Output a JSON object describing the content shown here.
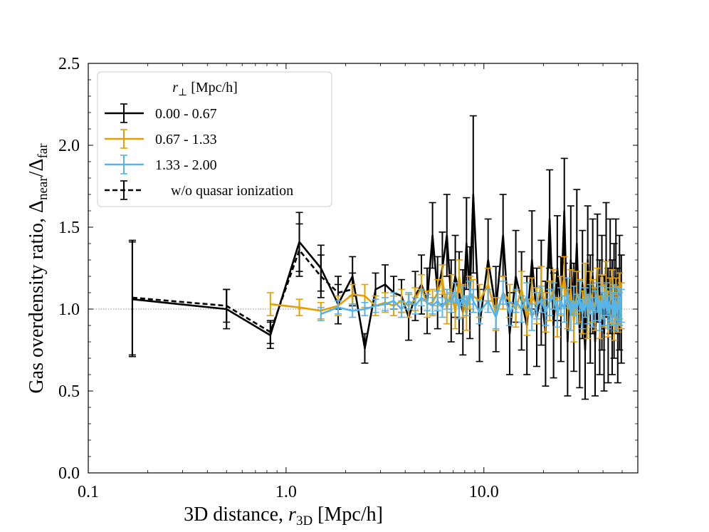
{
  "chart_data": {
    "type": "line",
    "xscale": "log",
    "xlim": [
      0.1,
      60
    ],
    "ylim": [
      0.0,
      2.5
    ],
    "x_tick_labels": [
      "0.1",
      "1.0",
      "10.0"
    ],
    "y_tick_labels": [
      "0.0",
      "0.5",
      "1.0",
      "1.5",
      "2.0",
      "2.5"
    ],
    "reference_line": {
      "y": 1.0,
      "style": "dotted",
      "color": "#888888"
    },
    "xlabel_prefix": "3D distance, ",
    "xlabel_var": "r",
    "xlabel_sub": "3D",
    "xlabel_suffix": " [Mpc/h]",
    "ylabel_prefix": "Gas overdensity ratio, ",
    "ylabel_num": "Δ",
    "ylabel_num_sub": "near",
    "ylabel_slash": "/",
    "ylabel_den": "Δ",
    "ylabel_den_sub": "far",
    "legend": {
      "title_var": "r",
      "title_sub": "⊥",
      "title_suffix": " [Mpc/h]",
      "placement": "upper-left",
      "entries": [
        "0.00 - 0.67",
        "0.67 - 1.33",
        "1.33 - 2.00",
        "w/o quasar ionization"
      ]
    },
    "series": [
      {
        "name": "0.00 - 0.67",
        "color": "#000000",
        "style": "solid",
        "x": [
          0.167,
          0.5,
          0.833,
          1.167,
          1.5,
          1.833,
          2.167,
          2.5,
          2.833,
          3.167,
          3.5,
          3.833,
          4.167,
          4.5,
          4.833,
          5.167,
          5.5,
          5.833,
          6.167,
          6.5,
          6.833,
          7.167,
          7.5,
          7.833,
          8.167,
          8.5,
          8.833,
          9.5,
          10.5,
          11.5,
          12.5,
          13.5,
          14.5,
          15.5,
          16.5,
          17.5,
          18.5,
          19.5,
          20.5,
          21.5,
          22.5,
          23.5,
          24.5,
          25.5,
          26.5,
          27.5,
          28.5,
          29.5,
          30.5,
          31.5,
          32.5,
          33.5,
          34.5,
          35.5,
          36.5,
          37.5,
          38.5,
          39.5,
          40.5,
          41.5,
          42.5,
          43.5,
          44.5,
          45.5,
          46.5,
          47.5,
          48.5,
          49.5
        ],
        "y": [
          1.06,
          1.0,
          0.84,
          1.41,
          1.25,
          1.03,
          1.2,
          0.76,
          1.12,
          1.15,
          1.1,
          1.08,
          0.95,
          1.08,
          1.15,
          1.05,
          1.45,
          1.1,
          1.25,
          1.45,
          1.05,
          1.2,
          1.1,
          0.98,
          1.4,
          1.1,
          1.7,
          0.9,
          1.3,
          1.0,
          1.45,
          0.85,
          1.2,
          1.05,
          0.9,
          1.3,
          0.95,
          1.1,
          0.85,
          1.55,
          0.9,
          1.25,
          1.0,
          1.6,
          0.8,
          1.3,
          0.95,
          1.4,
          0.85,
          1.15,
          0.75,
          1.3,
          1.0,
          1.2,
          0.8,
          1.25,
          0.95,
          1.1,
          0.85,
          1.3,
          0.9,
          1.2,
          0.95,
          1.05,
          1.2,
          0.9,
          1.1,
          1.0
        ],
        "err": [
          0.35,
          0.12,
          0.08,
          0.18,
          0.14,
          0.12,
          0.12,
          0.09,
          0.1,
          0.12,
          0.1,
          0.1,
          0.14,
          0.15,
          0.18,
          0.2,
          0.2,
          0.22,
          0.22,
          0.25,
          0.25,
          0.25,
          0.25,
          0.26,
          0.28,
          0.28,
          0.48,
          0.22,
          0.25,
          0.26,
          0.25,
          0.25,
          0.28,
          0.3,
          0.3,
          0.3,
          0.3,
          0.32,
          0.32,
          0.3,
          0.32,
          0.32,
          0.32,
          0.32,
          0.33,
          0.33,
          0.33,
          0.33,
          0.33,
          0.33,
          0.3,
          0.33,
          0.33,
          0.35,
          0.33,
          0.33,
          0.35,
          0.35,
          0.35,
          0.35,
          0.35,
          0.35,
          0.35,
          0.35,
          0.35,
          0.35,
          0.35,
          0.33
        ]
      },
      {
        "name": "0.67 - 1.33",
        "color": "#E69F00",
        "style": "solid",
        "x": [
          0.833,
          1.167,
          1.5,
          1.833,
          2.167,
          2.5,
          2.833,
          3.167,
          3.5,
          3.833,
          4.167,
          4.5,
          4.833,
          5.167,
          5.5,
          5.833,
          6.167,
          6.5,
          6.833,
          7.167,
          7.5,
          7.833,
          8.167,
          8.5,
          8.833,
          9.5,
          10.5,
          11.5,
          12.5,
          13.5,
          14.5,
          15.5,
          16.5,
          17.5,
          18.5,
          19.5,
          20.5,
          21.5,
          22.5,
          23.5,
          24.5,
          25.5,
          26.5,
          27.5,
          28.5,
          29.5,
          30.5,
          31.5,
          32.5,
          33.5,
          34.5,
          35.5,
          36.5,
          37.5,
          38.5,
          39.5,
          40.5,
          41.5,
          42.5,
          43.5,
          44.5,
          45.5,
          46.5,
          47.5,
          48.5,
          49.5
        ],
        "y": [
          1.03,
          1.01,
          0.99,
          1.02,
          1.09,
          1.08,
          1.02,
          1.04,
          1.02,
          1.05,
          1.02,
          1.06,
          1.13,
          1.03,
          1.04,
          1.1,
          1.18,
          1.0,
          1.12,
          0.98,
          1.2,
          1.05,
          0.97,
          1.1,
          1.08,
          1.05,
          1.15,
          0.97,
          1.1,
          1.05,
          1.0,
          1.12,
          0.95,
          1.08,
          1.02,
          1.15,
          0.98,
          1.05,
          1.12,
          0.95,
          1.08,
          1.2,
          1.0,
          1.12,
          0.92,
          1.1,
          1.05,
          0.98,
          1.15,
          0.95,
          1.1,
          1.05,
          1.0,
          1.12,
          0.95,
          1.08,
          1.02,
          1.15,
          0.97,
          1.05,
          1.1,
          0.95,
          1.05,
          1.0,
          1.08,
          1.02
        ],
        "err": [
          0.07,
          0.05,
          0.05,
          0.06,
          0.06,
          0.07,
          0.06,
          0.06,
          0.06,
          0.07,
          0.07,
          0.07,
          0.08,
          0.08,
          0.08,
          0.08,
          0.09,
          0.09,
          0.09,
          0.1,
          0.1,
          0.1,
          0.1,
          0.1,
          0.1,
          0.1,
          0.1,
          0.1,
          0.1,
          0.1,
          0.11,
          0.11,
          0.11,
          0.11,
          0.11,
          0.11,
          0.12,
          0.12,
          0.12,
          0.12,
          0.12,
          0.12,
          0.12,
          0.12,
          0.12,
          0.13,
          0.13,
          0.13,
          0.13,
          0.13,
          0.13,
          0.13,
          0.13,
          0.13,
          0.13,
          0.13,
          0.13,
          0.14,
          0.14,
          0.14,
          0.14,
          0.14,
          0.14,
          0.14,
          0.14,
          0.14
        ]
      },
      {
        "name": "1.33 - 2.00",
        "color": "#56B4E9",
        "style": "solid",
        "x": [
          1.5,
          1.833,
          2.167,
          2.5,
          2.833,
          3.167,
          3.5,
          3.833,
          4.167,
          4.5,
          4.833,
          5.167,
          5.5,
          5.833,
          6.167,
          6.5,
          6.833,
          7.167,
          7.5,
          7.833,
          8.167,
          8.5,
          8.833,
          9.5,
          10.5,
          11.5,
          12.5,
          13.5,
          14.5,
          15.5,
          16.5,
          17.5,
          18.5,
          19.5,
          20.5,
          21.5,
          22.5,
          23.5,
          24.5,
          25.5,
          26.5,
          27.5,
          28.5,
          29.5,
          30.5,
          31.5,
          32.5,
          33.5,
          34.5,
          35.5,
          36.5,
          37.5,
          38.5,
          39.5,
          40.5,
          41.5,
          42.5,
          43.5,
          44.5,
          45.5,
          46.5,
          47.5,
          48.5,
          49.5
        ],
        "y": [
          0.97,
          1.01,
          0.99,
          1.0,
          1.02,
          1.03,
          1.05,
          1.0,
          1.05,
          1.02,
          1.07,
          1.04,
          1.02,
          1.05,
          1.01,
          1.06,
          1.04,
          1.1,
          1.0,
          1.08,
          1.02,
          1.1,
          1.05,
          0.98,
          1.05,
          0.95,
          1.1,
          0.97,
          1.05,
          1.0,
          1.08,
          0.95,
          1.02,
          1.06,
          0.98,
          1.04,
          1.08,
          0.97,
          1.05,
          1.0,
          1.1,
          0.96,
          1.05,
          1.0,
          1.08,
          0.97,
          1.04,
          1.0,
          1.06,
          0.98,
          1.02,
          1.07,
          0.96,
          1.04,
          1.0,
          1.06,
          0.98,
          1.03,
          1.0,
          1.05,
          0.97,
          1.03,
          1.0,
          1.02
        ],
        "err": [
          0.04,
          0.04,
          0.04,
          0.04,
          0.04,
          0.04,
          0.05,
          0.05,
          0.05,
          0.05,
          0.05,
          0.05,
          0.05,
          0.06,
          0.06,
          0.06,
          0.06,
          0.06,
          0.06,
          0.06,
          0.06,
          0.07,
          0.07,
          0.07,
          0.07,
          0.07,
          0.07,
          0.07,
          0.07,
          0.08,
          0.08,
          0.08,
          0.08,
          0.08,
          0.08,
          0.08,
          0.08,
          0.08,
          0.08,
          0.08,
          0.09,
          0.09,
          0.09,
          0.09,
          0.09,
          0.09,
          0.09,
          0.09,
          0.09,
          0.09,
          0.09,
          0.09,
          0.09,
          0.1,
          0.1,
          0.1,
          0.1,
          0.1,
          0.1,
          0.1,
          0.1,
          0.1,
          0.1,
          0.1
        ]
      },
      {
        "name": "w/o quasar ionization",
        "color": "#000000",
        "style": "dashed",
        "x": [
          0.167,
          0.5,
          0.833,
          1.167,
          1.5,
          1.833,
          2.167
        ],
        "y": [
          1.07,
          1.02,
          0.86,
          1.36,
          1.2,
          1.1,
          1.12
        ],
        "err": [
          0.35,
          0.1,
          0.07,
          0.16,
          0.13,
          0.1,
          0.1
        ]
      }
    ]
  }
}
